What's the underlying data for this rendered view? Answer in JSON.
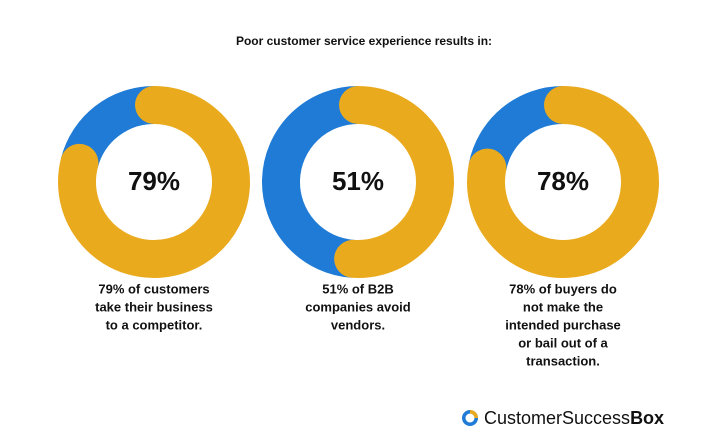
{
  "title": "Poor customer service experience results in:",
  "chart_data": [
    {
      "type": "donut",
      "values": [
        79,
        21
      ],
      "value_labels": [
        "79%",
        null
      ],
      "colors": [
        "#eaaa1e",
        "#1f7bd6"
      ],
      "caption": [
        "79% of customers",
        "take their business",
        "to a competitor."
      ]
    },
    {
      "type": "donut",
      "values": [
        51,
        49
      ],
      "value_labels": [
        "51%",
        null
      ],
      "colors": [
        "#eaaa1e",
        "#1f7bd6"
      ],
      "caption": [
        "51% of B2B",
        "companies avoid",
        "vendors."
      ]
    },
    {
      "type": "donut",
      "values": [
        78,
        22
      ],
      "value_labels": [
        "78%",
        null
      ],
      "colors": [
        "#eaaa1e",
        "#1f7bd6"
      ],
      "caption": [
        "78% of buyers do",
        "not make the",
        "intended purchase",
        "or bail out of a",
        "transaction."
      ]
    }
  ],
  "brand": {
    "name_regular": "CustomerSuccess",
    "name_bold": "Box"
  }
}
